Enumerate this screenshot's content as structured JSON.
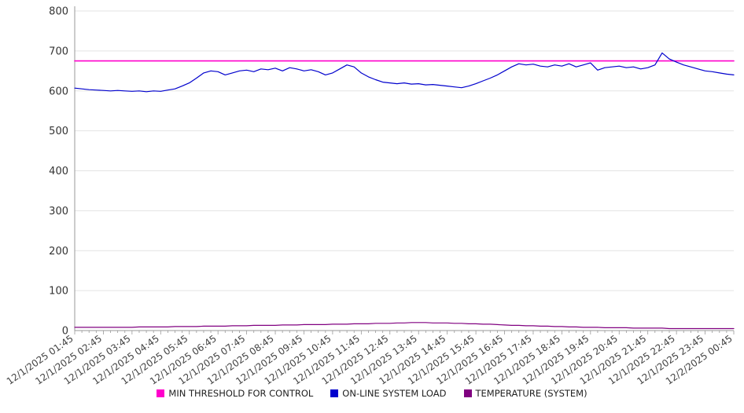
{
  "chart_data": {
    "type": "line",
    "title": "",
    "xlabel": "",
    "ylabel": "",
    "ylim": [
      0,
      800
    ],
    "y_ticks": [
      0,
      100,
      200,
      300,
      400,
      500,
      600,
      700,
      800
    ],
    "grid": "horizontal",
    "legend_position": "bottom",
    "points_per_label": 4,
    "x_labels": [
      "12/1/2025 01:45",
      "12/1/2025 02:45",
      "12/1/2025 03:45",
      "12/1/2025 04:45",
      "12/1/2025 05:45",
      "12/1/2025 06:45",
      "12/1/2025 07:45",
      "12/1/2025 08:45",
      "12/1/2025 09:45",
      "12/1/2025 10:45",
      "12/1/2025 11:45",
      "12/1/2025 12:45",
      "12/1/2025 13:45",
      "12/1/2025 14:45",
      "12/1/2025 15:45",
      "12/1/2025 16:45",
      "12/1/2025 17:45",
      "12/1/2025 18:45",
      "12/1/2025 19:45",
      "12/1/2025 20:45",
      "12/1/2025 21:45",
      "12/1/2025 22:45",
      "12/1/2025 23:45",
      "12/2/2025 00:45"
    ],
    "series": [
      {
        "name": "MIN THRESHOLD FOR CONTROL",
        "color": "#FF00CC",
        "type": "constant",
        "value": 675
      },
      {
        "name": "ON-LINE SYSTEM LOAD",
        "color": "#0000CD",
        "values": [
          607,
          605,
          603,
          602,
          601,
          600,
          601,
          600,
          599,
          600,
          598,
          600,
          599,
          602,
          605,
          612,
          620,
          632,
          645,
          650,
          648,
          640,
          645,
          650,
          652,
          648,
          655,
          653,
          657,
          650,
          658,
          655,
          650,
          653,
          648,
          640,
          645,
          655,
          665,
          660,
          645,
          635,
          628,
          622,
          620,
          618,
          620,
          617,
          618,
          615,
          616,
          614,
          612,
          610,
          608,
          612,
          618,
          625,
          632,
          640,
          650,
          660,
          668,
          665,
          667,
          662,
          660,
          665,
          662,
          668,
          660,
          665,
          670,
          652,
          658,
          660,
          662,
          658,
          660,
          655,
          658,
          665,
          695,
          680,
          672,
          665,
          660,
          655,
          650,
          648,
          645,
          642,
          640
        ]
      },
      {
        "name": "TEMPERATURE (SYSTEM)",
        "color": "#800080",
        "values": [
          8,
          8,
          8,
          8,
          8,
          8,
          8,
          8,
          8,
          9,
          9,
          9,
          9,
          9,
          10,
          10,
          10,
          10,
          11,
          11,
          11,
          11,
          12,
          12,
          12,
          13,
          13,
          13,
          13,
          14,
          14,
          14,
          15,
          15,
          15,
          15,
          16,
          16,
          16,
          17,
          17,
          17,
          18,
          18,
          18,
          19,
          19,
          20,
          20,
          20,
          19,
          19,
          19,
          18,
          18,
          17,
          17,
          16,
          16,
          15,
          14,
          13,
          13,
          12,
          12,
          11,
          11,
          10,
          10,
          9,
          9,
          8,
          8,
          8,
          7,
          7,
          7,
          7,
          6,
          6,
          6,
          6,
          6,
          5,
          5,
          5,
          5,
          5,
          5,
          5,
          5,
          5,
          5
        ]
      }
    ]
  }
}
